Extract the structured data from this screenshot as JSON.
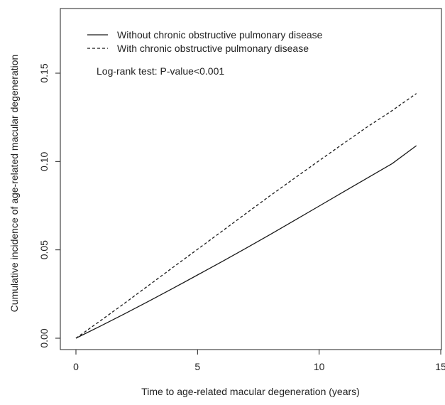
{
  "chart_data": {
    "type": "line",
    "title": "",
    "xlabel": "Time to age-related macular degeneration (years)",
    "ylabel": "Cumulative incidence of age-related macular degeneration",
    "xlim": [
      0,
      15
    ],
    "ylim": [
      0,
      0.18
    ],
    "xticks": [
      0,
      5,
      10,
      15
    ],
    "xtick_labels": [
      "0",
      "5",
      "10",
      "15"
    ],
    "yticks": [
      0,
      0.05,
      0.1,
      0.15
    ],
    "ytick_labels": [
      "0.00",
      "0.05",
      "0.10",
      "0.15"
    ],
    "grid": false,
    "legend_position": "top-left",
    "annotation": "Log-rank test: P-value<0.001",
    "series": [
      {
        "name": "Without chronic obstructive pulmonary disease",
        "line_style": "solid",
        "color": "#1a1a1a",
        "x": [
          0,
          1,
          2,
          3,
          4,
          5,
          6,
          7,
          8,
          9,
          10,
          11,
          12,
          13,
          14
        ],
        "y": [
          0,
          0.0068,
          0.0138,
          0.021,
          0.0283,
          0.0358,
          0.0433,
          0.051,
          0.0588,
          0.0668,
          0.0748,
          0.0828,
          0.0908,
          0.0988,
          0.109
        ]
      },
      {
        "name": "With chronic obstructive pulmonary disease",
        "line_style": "dashed",
        "color": "#1a1a1a",
        "x": [
          0,
          1,
          2,
          3,
          4,
          5,
          6,
          7,
          8,
          9,
          10,
          11,
          12,
          13,
          14
        ],
        "y": [
          0,
          0.0098,
          0.0198,
          0.03,
          0.0402,
          0.0503,
          0.0605,
          0.0707,
          0.0808,
          0.0907,
          0.1005,
          0.1102,
          0.1198,
          0.1288,
          0.1385
        ]
      }
    ]
  }
}
